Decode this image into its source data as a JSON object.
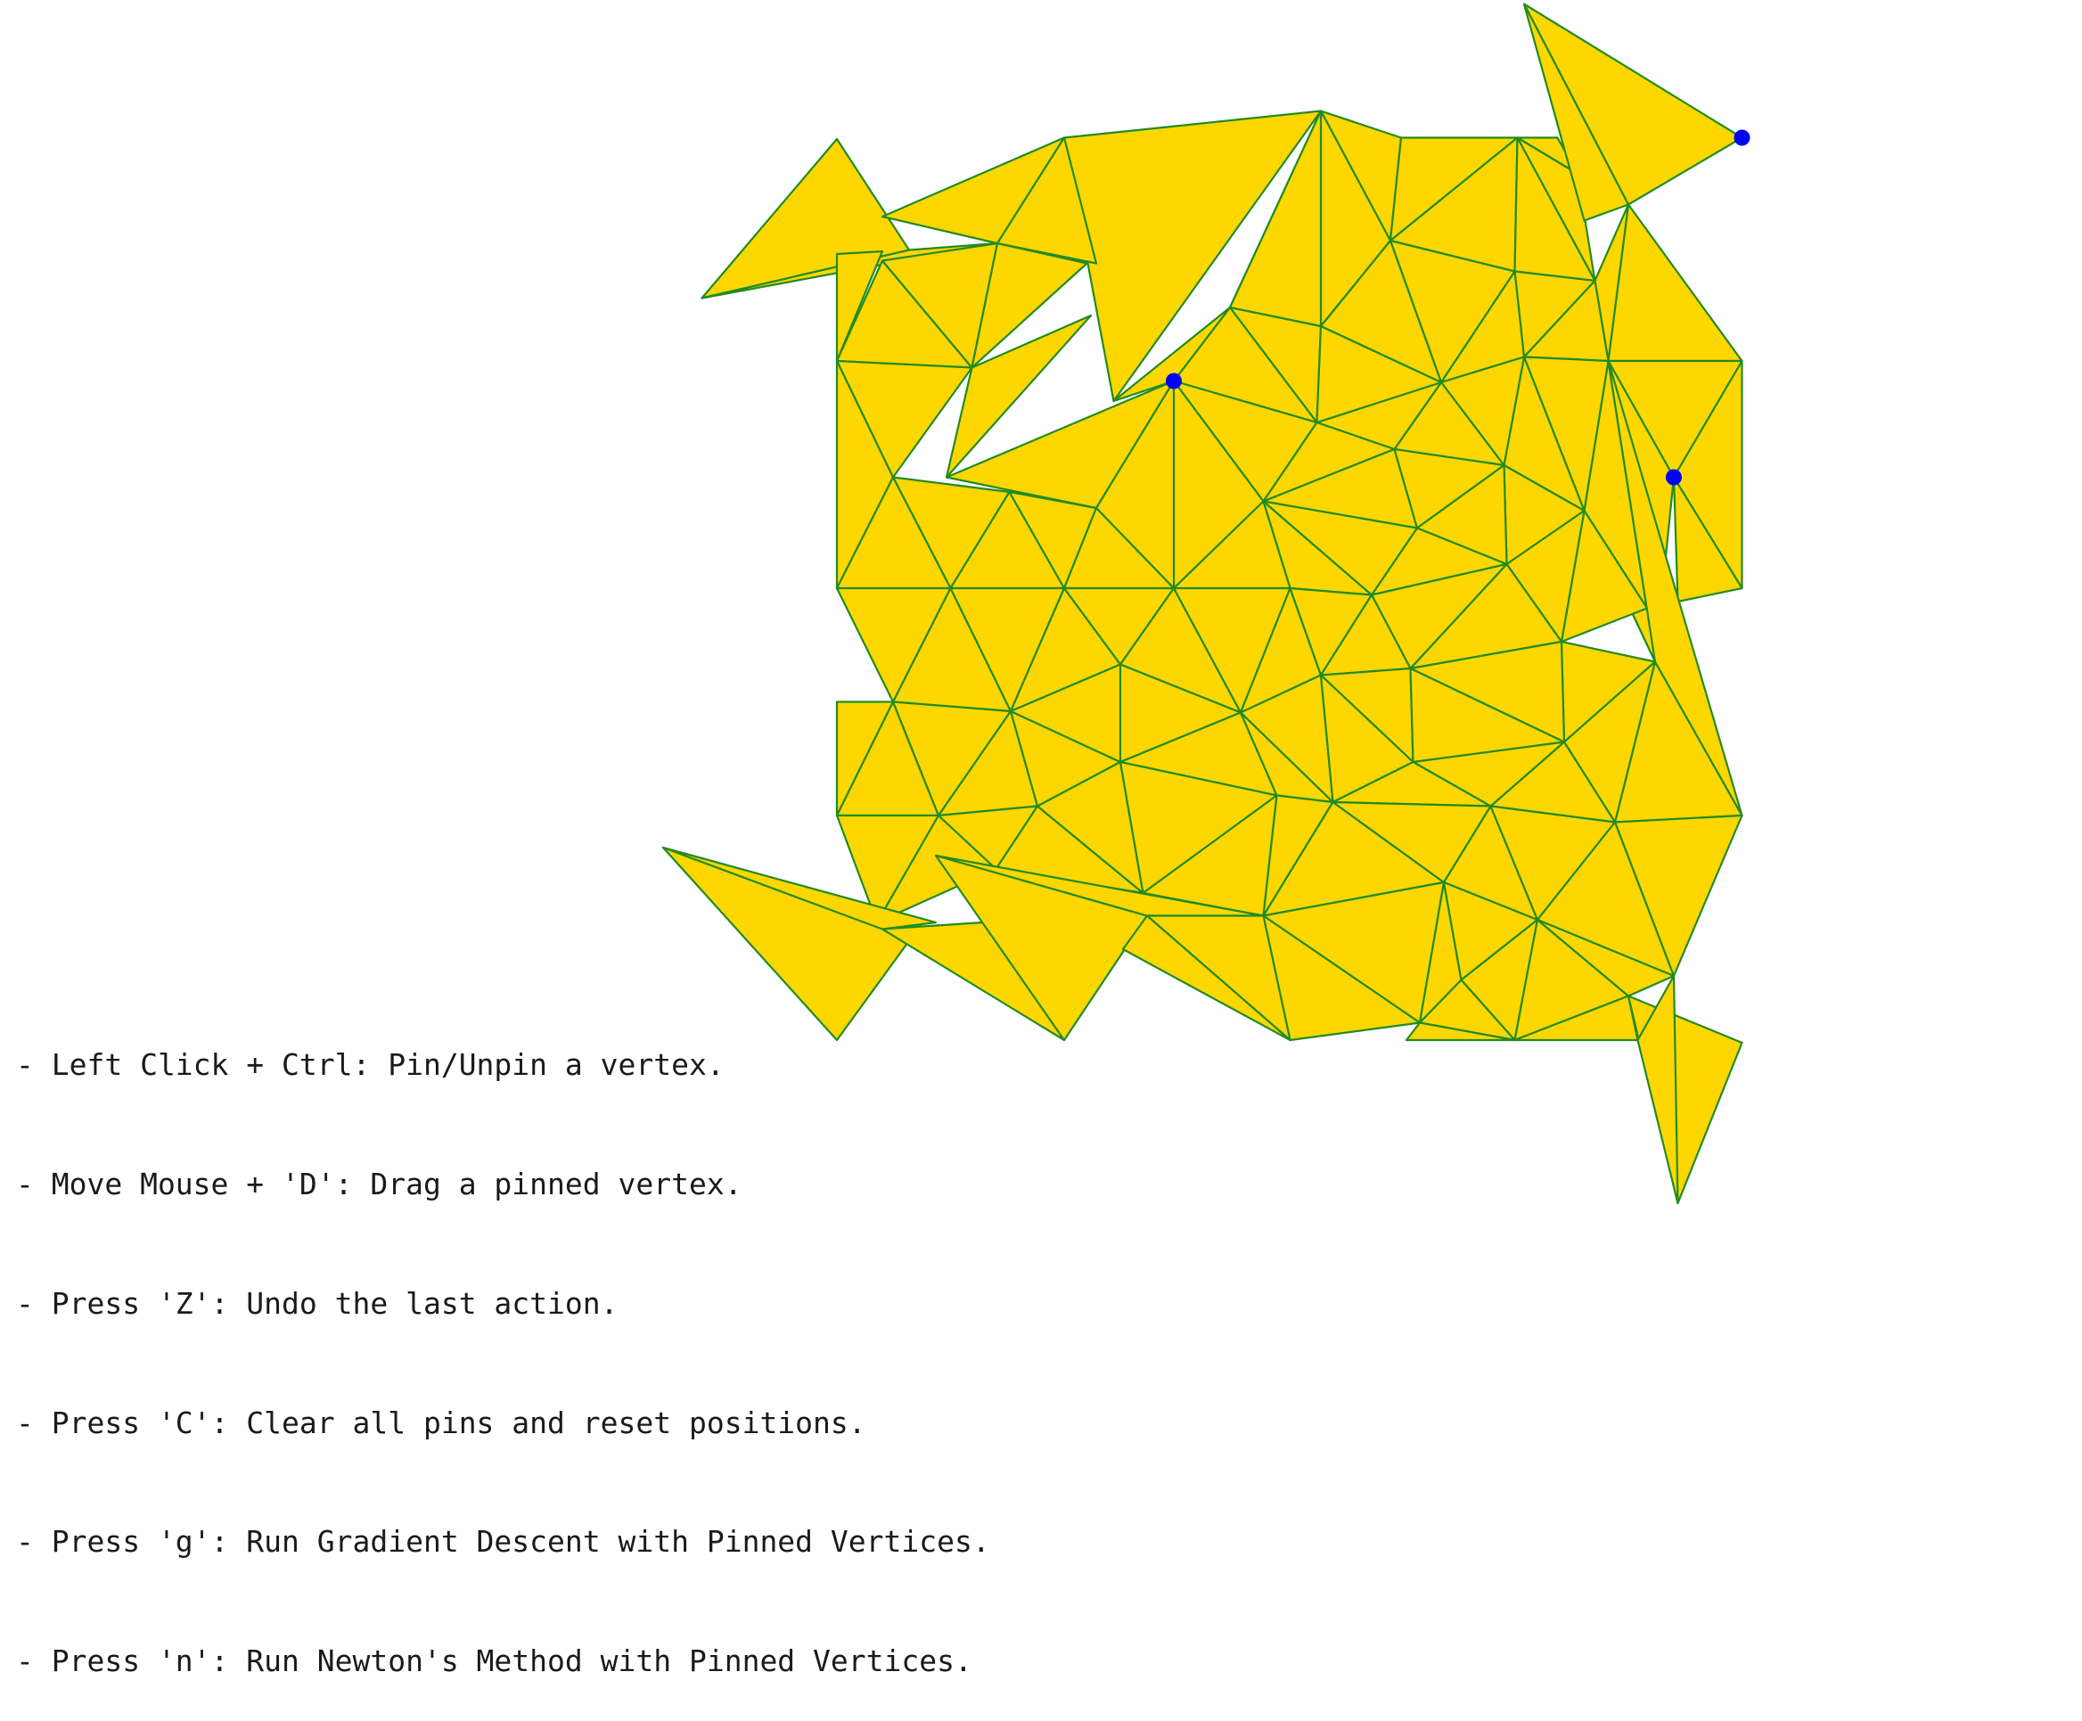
{
  "colors": {
    "background": "#ffffff",
    "mesh_fill": "#ffd700",
    "mesh_edge": "#228b22",
    "pin": "#0000ff",
    "text": "#1a1a1a"
  },
  "mesh": {
    "pinned_vertex_count": 3
  },
  "instructions": [
    "- Left Click + Ctrl: Pin/Unpin a vertex.",
    "- Move Mouse + 'D': Drag a pinned vertex.",
    "- Press 'Z': Undo the last action.",
    "- Press 'C': Clear all pins and reset positions.",
    "- Press 'g': Run Gradient Descent with Pinned Vertices.",
    "- Press 'n': Run Newton's Method with Pinned Vertices."
  ]
}
